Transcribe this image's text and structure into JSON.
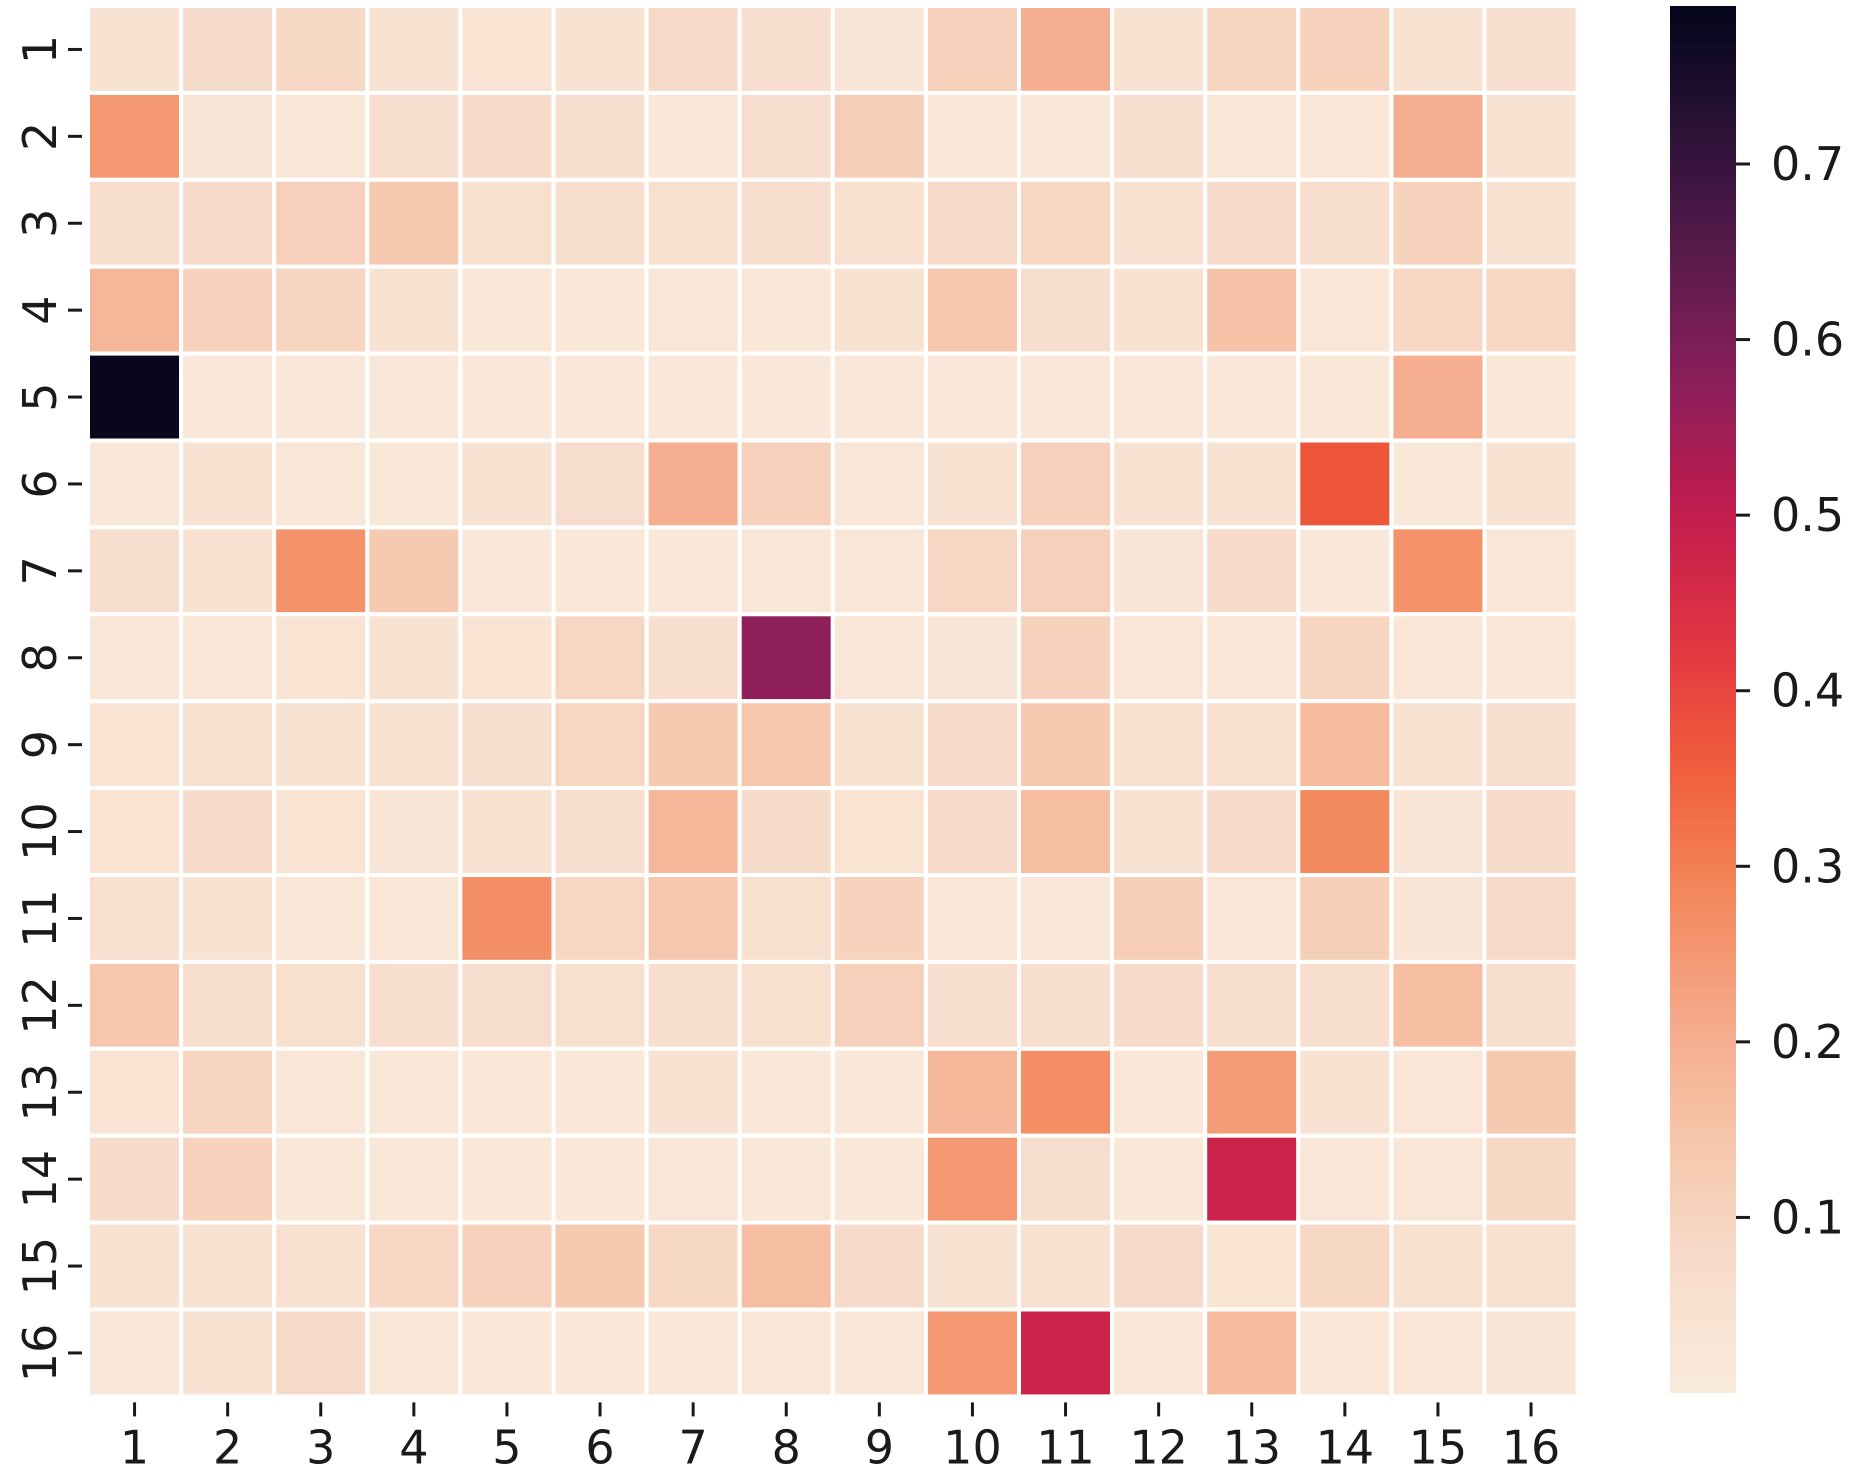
{
  "chart_data": {
    "type": "heatmap",
    "title": "",
    "xlabel": "",
    "ylabel": "",
    "x_categories": [
      "1",
      "2",
      "3",
      "4",
      "5",
      "6",
      "7",
      "8",
      "9",
      "10",
      "11",
      "12",
      "13",
      "14",
      "15",
      "16"
    ],
    "y_categories": [
      "1",
      "2",
      "3",
      "4",
      "5",
      "6",
      "7",
      "8",
      "9",
      "10",
      "11",
      "12",
      "13",
      "14",
      "15",
      "16"
    ],
    "values": [
      [
        0.04,
        0.075,
        0.085,
        0.04,
        0.035,
        0.045,
        0.08,
        0.06,
        0.03,
        0.11,
        0.2,
        0.045,
        0.095,
        0.1,
        0.04,
        0.065
      ],
      [
        0.25,
        0.03,
        0.025,
        0.065,
        0.07,
        0.06,
        0.02,
        0.065,
        0.12,
        0.02,
        0.015,
        0.06,
        0.025,
        0.025,
        0.2,
        0.04
      ],
      [
        0.06,
        0.07,
        0.11,
        0.13,
        0.055,
        0.06,
        0.055,
        0.065,
        0.05,
        0.08,
        0.09,
        0.05,
        0.07,
        0.06,
        0.1,
        0.04
      ],
      [
        0.18,
        0.1,
        0.095,
        0.04,
        0.02,
        0.02,
        0.025,
        0.02,
        0.045,
        0.14,
        0.065,
        0.04,
        0.15,
        0.025,
        0.09,
        0.09
      ],
      [
        0.78,
        0.015,
        0.015,
        0.015,
        0.015,
        0.015,
        0.015,
        0.015,
        0.015,
        0.015,
        0.015,
        0.015,
        0.015,
        0.02,
        0.2,
        0.02
      ],
      [
        0.02,
        0.04,
        0.025,
        0.02,
        0.045,
        0.065,
        0.2,
        0.11,
        0.025,
        0.04,
        0.11,
        0.04,
        0.04,
        0.37,
        0.02,
        0.045
      ],
      [
        0.06,
        0.04,
        0.26,
        0.13,
        0.015,
        0.02,
        0.02,
        0.025,
        0.025,
        0.09,
        0.11,
        0.03,
        0.07,
        0.015,
        0.26,
        0.025
      ],
      [
        0.025,
        0.025,
        0.035,
        0.04,
        0.035,
        0.09,
        0.06,
        0.57,
        0.025,
        0.03,
        0.1,
        0.025,
        0.025,
        0.095,
        0.025,
        0.025
      ],
      [
        0.035,
        0.055,
        0.045,
        0.04,
        0.06,
        0.09,
        0.13,
        0.14,
        0.04,
        0.07,
        0.13,
        0.055,
        0.055,
        0.17,
        0.04,
        0.06
      ],
      [
        0.035,
        0.07,
        0.035,
        0.03,
        0.045,
        0.06,
        0.18,
        0.07,
        0.035,
        0.075,
        0.16,
        0.045,
        0.07,
        0.28,
        0.03,
        0.075
      ],
      [
        0.05,
        0.045,
        0.025,
        0.025,
        0.27,
        0.09,
        0.14,
        0.055,
        0.1,
        0.02,
        0.015,
        0.12,
        0.025,
        0.115,
        0.03,
        0.08
      ],
      [
        0.14,
        0.065,
        0.055,
        0.06,
        0.065,
        0.055,
        0.06,
        0.055,
        0.11,
        0.06,
        0.06,
        0.07,
        0.065,
        0.06,
        0.16,
        0.06
      ],
      [
        0.035,
        0.095,
        0.025,
        0.02,
        0.02,
        0.02,
        0.045,
        0.02,
        0.02,
        0.18,
        0.27,
        0.02,
        0.24,
        0.045,
        0.025,
        0.13
      ],
      [
        0.07,
        0.1,
        0.02,
        0.02,
        0.02,
        0.02,
        0.025,
        0.02,
        0.02,
        0.25,
        0.065,
        0.02,
        0.48,
        0.025,
        0.025,
        0.085
      ],
      [
        0.04,
        0.04,
        0.05,
        0.09,
        0.1,
        0.13,
        0.085,
        0.16,
        0.07,
        0.04,
        0.05,
        0.075,
        0.035,
        0.085,
        0.05,
        0.055
      ],
      [
        0.025,
        0.045,
        0.075,
        0.02,
        0.02,
        0.02,
        0.02,
        0.025,
        0.02,
        0.25,
        0.48,
        0.02,
        0.17,
        0.025,
        0.025,
        0.03
      ]
    ],
    "colormap": "rocket",
    "colorbar": {
      "vmin": 0.0,
      "vmax": 0.79,
      "ticks": [
        "0.1",
        "0.2",
        "0.3",
        "0.4",
        "0.5",
        "0.6",
        "0.7"
      ],
      "tick_values": [
        0.1,
        0.2,
        0.3,
        0.4,
        0.5,
        0.6,
        0.7
      ],
      "orientation": "vertical",
      "placement": "right"
    },
    "colors": {
      "rocket": [
        "#03051a",
        "#2b1238",
        "#5a1b4d",
        "#8c1f5a",
        "#c11c4e",
        "#e13342",
        "#f05c3b",
        "#f3865a",
        "#f5a888",
        "#f6c6ab",
        "#f7dccb",
        "#faebdd"
      ],
      "cell_border": "#ffffff",
      "tick_color": "#1a1a1a"
    },
    "grid": true
  }
}
